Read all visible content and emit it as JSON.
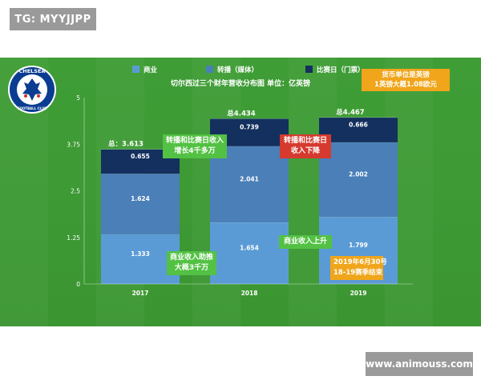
{
  "top_tag": "TG: MYYJJPP",
  "bottom_tag": "www.animouss.com",
  "logo": {
    "icon": "chelsea-lion-crest",
    "top_text": "CHELSEA",
    "bottom_text": "FOOTBALL CLUB"
  },
  "currency_note": [
    "货币单位是英镑",
    "1英镑大概1.08欧元"
  ],
  "chart_data": {
    "type": "bar",
    "stacked": true,
    "title": "切尔西过三个财年营收分布图 单位：亿英镑",
    "categories": [
      "2017",
      "2018",
      "2019"
    ],
    "series": [
      {
        "name": "商业",
        "values": [
          1.333,
          1.654,
          1.799
        ],
        "color": "#5b9bd5"
      },
      {
        "name": "转播（媒体）",
        "values": [
          1.624,
          2.041,
          2.002
        ],
        "color": "#4a7fb8"
      },
      {
        "name": "比赛日（门票）",
        "values": [
          0.655,
          0.739,
          0.666
        ],
        "color": "#13305e"
      }
    ],
    "totals": [
      "总：3.613",
      "总4.434",
      "总4.467"
    ],
    "yticks": [
      "0",
      "1.25",
      "2.5",
      "3.75",
      "5"
    ],
    "ylim": [
      0,
      5
    ],
    "grid": false,
    "legend_position": "top"
  },
  "annotations": [
    {
      "lines": [
        "转播和比赛日收入",
        "增长4千多万"
      ],
      "color": "green"
    },
    {
      "lines": [
        "转播和比赛日",
        "收入下降"
      ],
      "color": "red"
    },
    {
      "lines": [
        "商业收入助推",
        "大概3千万"
      ],
      "color": "green"
    },
    {
      "lines": [
        "商业收入上升"
      ],
      "color": "green"
    },
    {
      "lines": [
        "2019年6月30号",
        "18-19赛季结束"
      ],
      "color": "orange"
    }
  ]
}
